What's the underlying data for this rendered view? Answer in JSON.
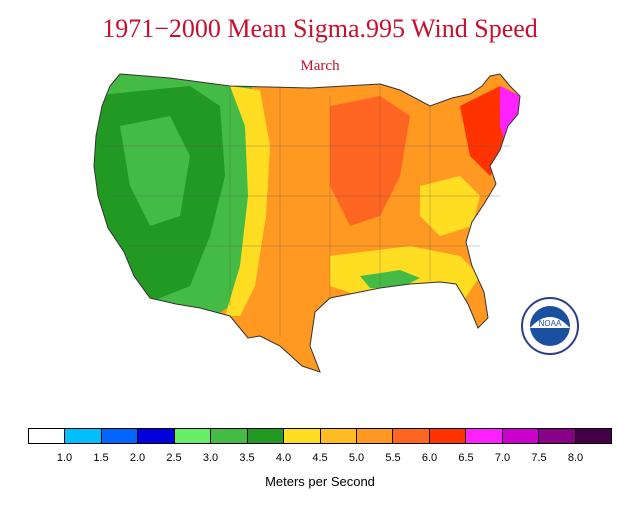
{
  "title": "1971−2000 Mean Sigma.995 Wind Speed",
  "subtitle": "March",
  "legend": {
    "units": "Meters per Second",
    "ticks": [
      "1.0",
      "1.5",
      "2.0",
      "2.5",
      "3.0",
      "3.5",
      "4.0",
      "4.5",
      "5.0",
      "5.5",
      "6.0",
      "6.5",
      "7.0",
      "7.5",
      "8.0"
    ],
    "colors": [
      "#ffffff",
      "#00bfff",
      "#0066ff",
      "#0000dd",
      "#66ee66",
      "#44bb44",
      "#229922",
      "#ffdd22",
      "#ffbb22",
      "#ff9922",
      "#ff6622",
      "#ff3300",
      "#ff22ff",
      "#cc00cc",
      "#880088",
      "#440044"
    ]
  },
  "logo": {
    "text": "NOAA"
  }
}
